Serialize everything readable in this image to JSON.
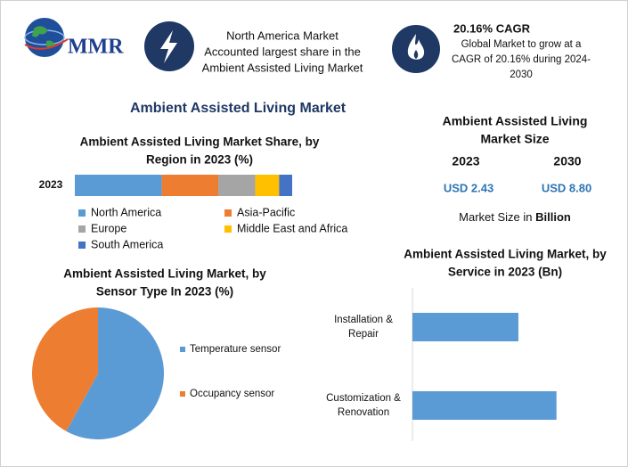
{
  "logo": "MMR",
  "header": {
    "highlight": [
      "North America Market",
      "Accounted largest share in the",
      "Ambient Assisted Living Market"
    ],
    "cagr_title": "20.16% CAGR",
    "cagr_text": [
      "Global Market to grow at a",
      "CAGR of 20.16% during 2024-",
      "2030"
    ]
  },
  "main_title": "Ambient Assisted Living Market",
  "market_size": {
    "title": [
      "Ambient Assisted Living",
      "Market Size"
    ],
    "years": [
      "2023",
      "2030"
    ],
    "values": [
      "USD 2.43",
      "USD 8.80"
    ],
    "note": "Market Size in ",
    "note_unit": "Billion"
  },
  "chart_data": [
    {
      "type": "stacked_bar",
      "title": [
        "Ambient Assisted Living Market Share, by",
        "Region in 2023 (%)"
      ],
      "categories": [
        "2023"
      ],
      "series": [
        {
          "name": "North America",
          "color": "#5b9bd5",
          "values": [
            40
          ]
        },
        {
          "name": "Asia-Pacific",
          "color": "#ed7d31",
          "values": [
            26
          ]
        },
        {
          "name": "Europe",
          "color": "#a5a5a5",
          "values": [
            17
          ]
        },
        {
          "name": "Middle East and Africa",
          "color": "#ffc000",
          "values": [
            11
          ]
        },
        {
          "name": "South America",
          "color": "#4472c4",
          "values": [
            6
          ]
        }
      ]
    },
    {
      "type": "pie",
      "title": [
        "Ambient Assisted Living Market, by",
        "Sensor Type In 2023 (%)"
      ],
      "categories": [
        "Temperature sensor",
        "Occupancy sensor"
      ],
      "values": [
        58,
        42
      ],
      "colors": [
        "#5b9bd5",
        "#ed7d31"
      ]
    },
    {
      "type": "hbar",
      "title": [
        "Ambient Assisted Living Market, by",
        "Service in 2023 (Bn)"
      ],
      "categories": [
        [
          "Installation &",
          "Repair"
        ],
        [
          "Customization &",
          "Renovation"
        ]
      ],
      "values": [
        1.03,
        1.4
      ],
      "color": "#5b9bd5"
    }
  ]
}
